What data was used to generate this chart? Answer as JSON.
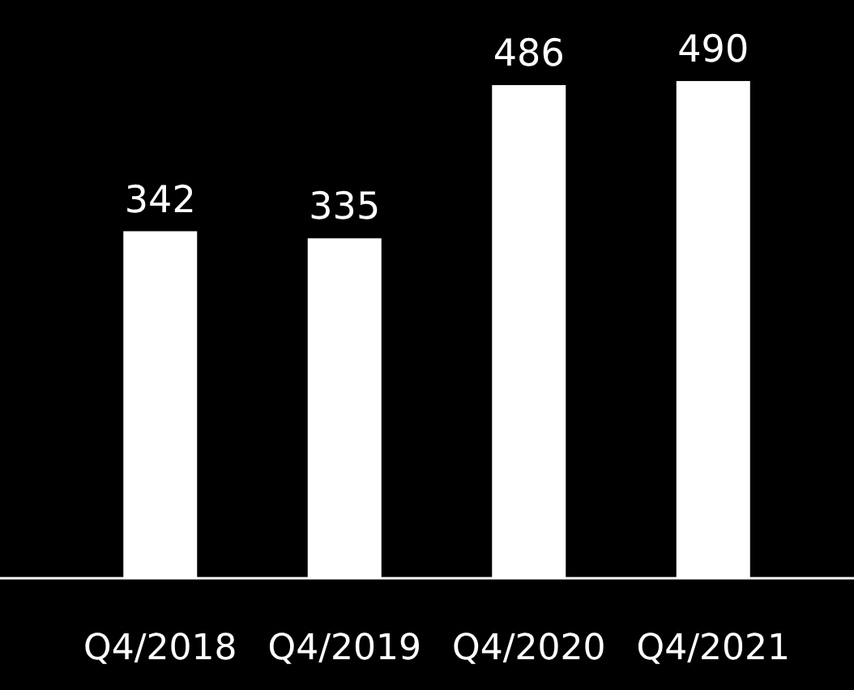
{
  "chart_data": {
    "type": "bar",
    "categories": [
      "Q4/2018",
      "Q4/2019",
      "Q4/2020",
      "Q4/2021"
    ],
    "values": [
      342,
      335,
      486,
      490
    ],
    "color": "#ffffff",
    "data_labels": true
  }
}
